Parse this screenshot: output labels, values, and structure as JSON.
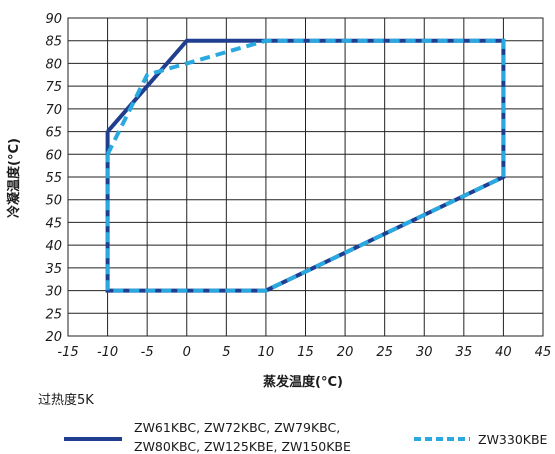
{
  "chart_data": {
    "type": "line",
    "xlabel": "蒸发温度(°C)",
    "ylabel": "冷凝温度(°C)",
    "xlim": [
      -15,
      45
    ],
    "ylim": [
      20,
      90
    ],
    "xticks": [
      "-15",
      "-10",
      "-5",
      "0",
      "5",
      "10",
      "15",
      "20",
      "25",
      "30",
      "35",
      "40",
      "45"
    ],
    "yticks": [
      "20",
      "25",
      "30",
      "35",
      "40",
      "45",
      "50",
      "55",
      "60",
      "65",
      "70",
      "75",
      "80",
      "85",
      "90"
    ],
    "grid": true,
    "annotation": "过热度5K",
    "series": [
      {
        "name": "ZW61KBC, ZW72KBC, ZW79KBC, ZW80KBC, ZW125KBE, ZW150KBE",
        "legend_lines": [
          "ZW61KBC, ZW72KBC, ZW79KBC,",
          "ZW80KBC, ZW125KBE, ZW150KBE"
        ],
        "color": "#1f3e8f",
        "style": "solid",
        "x": [
          -10,
          0,
          40,
          40,
          10,
          -10,
          -10
        ],
        "y": [
          65,
          85,
          85,
          55,
          30,
          30,
          65
        ]
      },
      {
        "name": "ZW330KBE",
        "legend_lines": [
          "ZW330KBE"
        ],
        "color": "#29a9e0",
        "style": "dashed",
        "x": [
          -10,
          -5,
          0,
          10,
          40,
          40,
          10,
          -10,
          -10
        ],
        "y": [
          60,
          77.5,
          80,
          85,
          85,
          55,
          30,
          30,
          60
        ]
      }
    ]
  }
}
